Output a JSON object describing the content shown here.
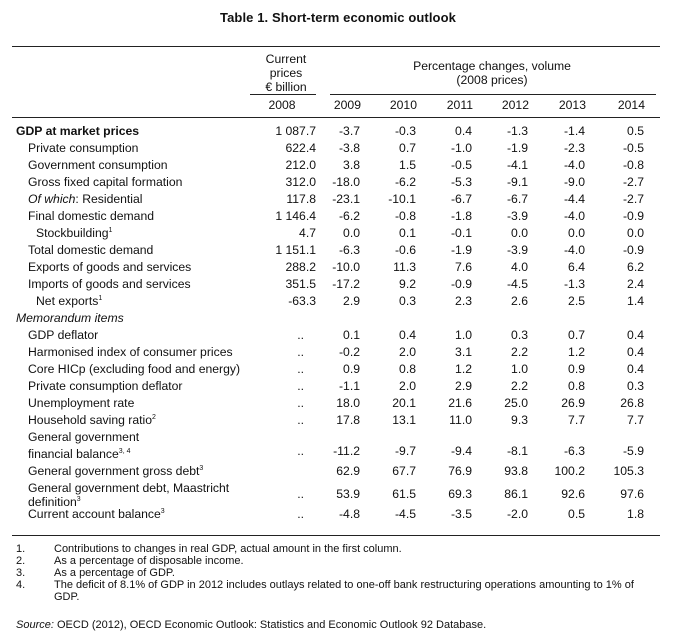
{
  "title": "Table 1. Short-term economic outlook",
  "header": {
    "col1_lines": [
      "Current",
      "prices",
      "€ billion"
    ],
    "group_lines": [
      "Percentage changes, volume",
      "(2008 prices)"
    ],
    "years": [
      "2008",
      "2009",
      "2010",
      "2011",
      "2012",
      "2013",
      "2014"
    ]
  },
  "rows": [
    {
      "label": "GDP at market prices",
      "bold": true,
      "values": [
        "1 087.7",
        "-3.7",
        "-0.3",
        "0.4",
        "-1.3",
        "-1.4",
        "0.5"
      ]
    },
    {
      "label": "Private consumption",
      "values": [
        "622.4",
        "-3.8",
        "0.7",
        "-1.0",
        "-1.9",
        "-2.3",
        "-0.5"
      ]
    },
    {
      "label": "Government consumption",
      "values": [
        "212.0",
        "3.8",
        "1.5",
        "-0.5",
        "-4.1",
        "-4.0",
        "-0.8"
      ]
    },
    {
      "label": "Gross fixed capital formation",
      "values": [
        "312.0",
        "-18.0",
        "-6.2",
        "-5.3",
        "-9.1",
        "-9.0",
        "-2.7"
      ]
    },
    {
      "label_italic": "Of which",
      "label": ": Residential",
      "values": [
        "117.8",
        "-23.1",
        "-10.1",
        "-6.7",
        "-6.7",
        "-4.4",
        "-2.7"
      ]
    },
    {
      "label": "Final domestic demand",
      "values": [
        "1 146.4",
        "-6.2",
        "-0.8",
        "-1.8",
        "-3.9",
        "-4.0",
        "-0.9"
      ]
    },
    {
      "label": "Stockbuilding",
      "sup": "1",
      "indent": 2,
      "values": [
        "4.7",
        "0.0",
        "0.1",
        "-0.1",
        "0.0",
        "0.0",
        "0.0"
      ]
    },
    {
      "label": "Total domestic demand",
      "values": [
        "1 151.1",
        "-6.3",
        "-0.6",
        "-1.9",
        "-3.9",
        "-4.0",
        "-0.9"
      ]
    },
    {
      "label": "Exports of goods and services",
      "values": [
        "288.2",
        "-10.0",
        "11.3",
        "7.6",
        "4.0",
        "6.4",
        "6.2"
      ]
    },
    {
      "label": "Imports of goods and services",
      "values": [
        "351.5",
        "-17.2",
        "9.2",
        "-0.9",
        "-4.5",
        "-1.3",
        "2.4"
      ]
    },
    {
      "label": "Net exports",
      "sup": "1",
      "indent": 2,
      "values": [
        "-63.3",
        "2.9",
        "0.3",
        "2.3",
        "2.6",
        "2.5",
        "1.4"
      ]
    },
    {
      "label": "Memorandum items",
      "italic": true,
      "indent": 0,
      "values": []
    },
    {
      "label": "GDP deflator",
      "values": [
        "..",
        "0.1",
        "0.4",
        "1.0",
        "0.3",
        "0.7",
        "0.4"
      ]
    },
    {
      "label": "Harmonised index of consumer prices",
      "values": [
        "..",
        "-0.2",
        "2.0",
        "3.1",
        "2.2",
        "1.2",
        "0.4"
      ]
    },
    {
      "label": "Core HICp (excluding food and energy)",
      "values": [
        "..",
        "0.9",
        "0.8",
        "1.2",
        "1.0",
        "0.9",
        "0.4"
      ]
    },
    {
      "label": "Private consumption deflator",
      "values": [
        "..",
        "-1.1",
        "2.0",
        "2.9",
        "2.2",
        "0.8",
        "0.3"
      ]
    },
    {
      "label": "Unemployment rate",
      "values": [
        "..",
        "18.0",
        "20.1",
        "21.6",
        "25.0",
        "26.9",
        "26.8"
      ]
    },
    {
      "label": "Household saving ratio",
      "sup": "2",
      "values": [
        "..",
        "17.8",
        "13.1",
        "11.0",
        "9.3",
        "7.7",
        "7.7"
      ]
    },
    {
      "label_lines": [
        "General government",
        "financial balance"
      ],
      "sup": "3, 4",
      "values": [
        "..",
        "-11.2",
        "-9.7",
        "-9.4",
        "-8.1",
        "-6.3",
        "-5.9"
      ]
    },
    {
      "label": "General government gross debt",
      "sup": "3",
      "values": [
        "",
        "62.9",
        "67.7",
        "76.9",
        "93.8",
        "100.2",
        "105.3"
      ]
    },
    {
      "label_lines": [
        "General government debt, Maastricht",
        "definition"
      ],
      "sup": "3",
      "values": [
        "..",
        "53.9",
        "61.5",
        "69.3",
        "86.1",
        "92.6",
        "97.6"
      ]
    },
    {
      "label": "Current account balance",
      "sup": "3",
      "values": [
        "..",
        "-4.8",
        "-4.5",
        "-3.5",
        "-2.0",
        "0.5",
        "1.8"
      ]
    }
  ],
  "notes": [
    {
      "num": "1.",
      "text": "Contributions to changes in real GDP, actual amount in the first column."
    },
    {
      "num": "2.",
      "text": "As a percentage of disposable income."
    },
    {
      "num": "3.",
      "text": "As a percentage of GDP."
    },
    {
      "num": "4.",
      "text": "The deficit of 8.1% of GDP in 2012 includes outlays related to one-off bank restructuring operations amounting to 1% of GDP."
    }
  ],
  "source": {
    "label": "Source:",
    "text": " OECD (2012), OECD Economic Outlook: Statistics and Economic Outlook 92 Database."
  }
}
